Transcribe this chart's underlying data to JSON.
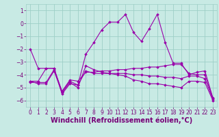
{
  "xlabel": "Windchill (Refroidissement éolien,°C)",
  "xlim": [
    -0.5,
    23.5
  ],
  "ylim": [
    -6.5,
    1.5
  ],
  "xticks": [
    0,
    1,
    2,
    3,
    4,
    5,
    6,
    7,
    8,
    9,
    10,
    11,
    12,
    13,
    14,
    15,
    16,
    17,
    18,
    19,
    20,
    21,
    22,
    23
  ],
  "yticks": [
    1,
    0,
    -1,
    -2,
    -3,
    -4,
    -5,
    -6
  ],
  "background_color": "#c8eae4",
  "grid_color": "#9ecfc7",
  "line_color": "#9900aa",
  "series": [
    {
      "x": [
        0,
        1,
        2,
        3,
        4,
        5,
        6,
        7,
        8,
        9,
        10,
        11,
        12,
        13,
        14,
        15,
        16,
        17,
        18,
        19,
        20,
        21,
        22,
        23
      ],
      "y": [
        -2.0,
        -3.5,
        -3.5,
        -3.5,
        -5.5,
        -4.7,
        -4.8,
        -2.4,
        -1.5,
        -0.5,
        0.1,
        0.1,
        0.7,
        -0.7,
        -1.4,
        -0.4,
        0.7,
        -1.5,
        -3.1,
        -3.1,
        -4.0,
        -3.8,
        -3.7,
        -5.8
      ]
    },
    {
      "x": [
        0,
        1,
        2,
        3,
        4,
        5,
        6,
        7,
        8,
        9,
        10,
        11,
        12,
        13,
        14,
        15,
        16,
        17,
        18,
        19,
        20,
        21,
        22,
        23
      ],
      "y": [
        -4.5,
        -4.5,
        -3.5,
        -3.5,
        -5.3,
        -4.4,
        -4.5,
        -3.8,
        -3.8,
        -3.7,
        -3.7,
        -3.6,
        -3.6,
        -3.5,
        -3.5,
        -3.4,
        -3.4,
        -3.3,
        -3.2,
        -3.2,
        -3.9,
        -4.0,
        -4.0,
        -5.8
      ]
    },
    {
      "x": [
        0,
        1,
        2,
        3,
        4,
        5,
        6,
        7,
        8,
        9,
        10,
        11,
        12,
        13,
        14,
        15,
        16,
        17,
        18,
        19,
        20,
        21,
        22,
        23
      ],
      "y": [
        -4.6,
        -4.6,
        -4.6,
        -3.6,
        -5.3,
        -4.5,
        -4.8,
        -3.7,
        -3.9,
        -3.9,
        -3.9,
        -3.9,
        -3.9,
        -4.0,
        -4.0,
        -4.1,
        -4.1,
        -4.2,
        -4.2,
        -4.3,
        -4.1,
        -4.1,
        -4.3,
        -5.9
      ]
    },
    {
      "x": [
        0,
        1,
        2,
        3,
        4,
        5,
        6,
        7,
        8,
        9,
        10,
        11,
        12,
        13,
        14,
        15,
        16,
        17,
        18,
        19,
        20,
        21,
        22,
        23
      ],
      "y": [
        -4.5,
        -4.7,
        -4.7,
        -3.7,
        -5.4,
        -4.6,
        -5.0,
        -3.3,
        -3.6,
        -3.8,
        -3.9,
        -4.0,
        -4.1,
        -4.4,
        -4.5,
        -4.7,
        -4.7,
        -4.8,
        -4.9,
        -5.0,
        -4.5,
        -4.5,
        -4.6,
        -6.0
      ]
    }
  ],
  "font_color": "#770077",
  "tick_fontsize": 5.5,
  "label_fontsize": 7.0
}
